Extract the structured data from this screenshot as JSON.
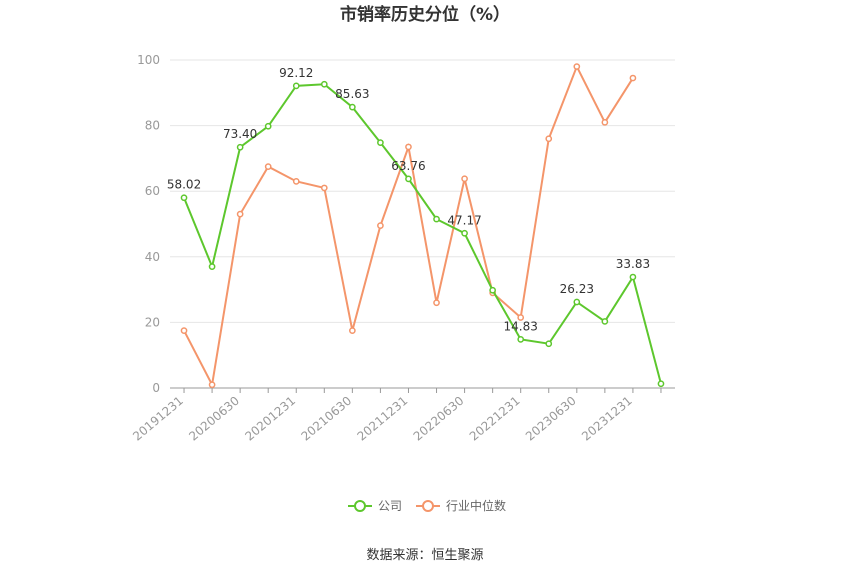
{
  "chart_data": {
    "type": "line",
    "title": "市销率历史分位（%）",
    "source": "数据来源：恒生聚源",
    "ylim": [
      0,
      100
    ],
    "yticks": [
      "0",
      "20",
      "40",
      "60",
      "80",
      "100"
    ],
    "x": [
      "20191231",
      "20200331",
      "20200630",
      "20200930",
      "20201231",
      "20210331",
      "20210630",
      "20210930",
      "20211231",
      "20220331",
      "20220630",
      "20220930",
      "20221231",
      "20230331",
      "20230630",
      "20230930",
      "20231231",
      "20240331"
    ],
    "xtick_labels": [
      "20191231",
      "20200630",
      "20201231",
      "20210630",
      "20211231",
      "20220630",
      "20221231",
      "20230630",
      "20231231"
    ],
    "legend_position": "bottom",
    "grid": true,
    "series": [
      {
        "name": "公司",
        "color": "#5dc72d",
        "values": [
          58.02,
          37.0,
          73.4,
          79.8,
          92.12,
          92.6,
          85.63,
          74.8,
          63.76,
          51.5,
          47.17,
          29.8,
          14.83,
          13.5,
          26.23,
          20.3,
          33.83,
          1.3
        ],
        "labels": [
          {
            "index": 0,
            "text": "58.02"
          },
          {
            "index": 2,
            "text": "73.40"
          },
          {
            "index": 4,
            "text": "92.12"
          },
          {
            "index": 6,
            "text": "85.63"
          },
          {
            "index": 8,
            "text": "63.76"
          },
          {
            "index": 10,
            "text": "47.17"
          },
          {
            "index": 12,
            "text": "14.83"
          },
          {
            "index": 14,
            "text": "26.23"
          },
          {
            "index": 16,
            "text": "33.83"
          }
        ]
      },
      {
        "name": "行业中位数",
        "color": "#f4956a",
        "values": [
          17.5,
          1.0,
          53.0,
          67.5,
          63.0,
          61.0,
          17.5,
          49.5,
          73.5,
          26.0,
          63.8,
          29.0,
          21.5,
          76.0,
          98.0,
          81.0,
          94.5,
          null
        ]
      }
    ]
  }
}
